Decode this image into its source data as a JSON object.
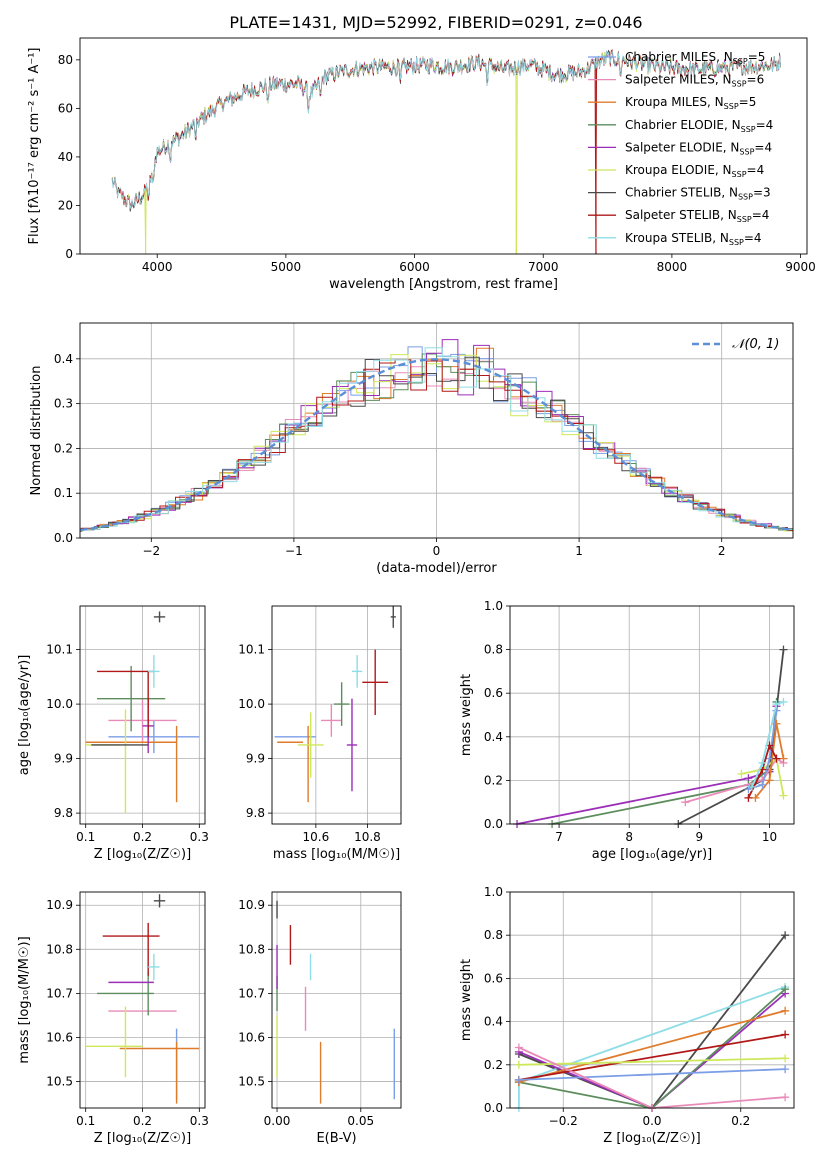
{
  "figure_title": "PLATE=1431, MJD=52992, FIBERID=0291, z=0.046",
  "models": [
    {
      "name": "Chabrier MILES",
      "nssp": "5",
      "color": "#7b9ee6"
    },
    {
      "name": "Salpeter MILES",
      "nssp": "6",
      "color": "#e98bb8"
    },
    {
      "name": "Kroupa MILES",
      "nssp": "5",
      "color": "#e07b2a"
    },
    {
      "name": "Chabrier ELODIE",
      "nssp": "4",
      "color": "#5d8d5d"
    },
    {
      "name": "Salpeter ELODIE",
      "nssp": "4",
      "color": "#9b2fb8"
    },
    {
      "name": "Kroupa ELODIE",
      "nssp": "4",
      "color": "#cde85a"
    },
    {
      "name": "Chabrier STELIB",
      "nssp": "3",
      "color": "#4a4a4a"
    },
    {
      "name": "Salpeter STELIB",
      "nssp": "4",
      "color": "#b01818"
    },
    {
      "name": "Kroupa STELIB",
      "nssp": "4",
      "color": "#8fdde6"
    }
  ],
  "chart_data": [
    {
      "id": "spectrum",
      "type": "line",
      "xlabel": "wavelength [Angstrom, rest frame]",
      "ylabel": "Flux [fλ10⁻¹⁷ erg cm⁻² s⁻¹ A⁻¹]",
      "xlim": [
        3400,
        9050
      ],
      "ylim": [
        0,
        89
      ],
      "xticks": [
        4000,
        5000,
        6000,
        7000,
        8000,
        9000
      ],
      "yticks": [
        0,
        20,
        40,
        60,
        80
      ],
      "legend_position": "top-right",
      "continuum_x": [
        3650,
        3700,
        3800,
        3900,
        3950,
        4000,
        4100,
        4200,
        4300,
        4500,
        4700,
        4900,
        5100,
        5200,
        5300,
        5500,
        5700,
        5900,
        6100,
        6300,
        6500,
        6700,
        6900,
        7100,
        7300,
        7500,
        7700,
        7900,
        8200,
        8500,
        8800,
        8850
      ],
      "continuum_y": [
        30,
        25,
        20,
        25,
        31,
        42,
        46,
        49,
        54,
        62,
        67,
        70,
        70,
        66,
        73,
        76,
        77,
        77,
        78,
        77,
        79,
        76,
        78,
        74,
        75,
        81,
        79,
        77,
        76,
        77,
        78,
        80
      ],
      "dropouts": [
        {
          "wavelength": 3910,
          "model": "Kroupa ELODIE"
        },
        {
          "wavelength": 6790,
          "model": "Kroupa ELODIE"
        },
        {
          "wavelength": 7410,
          "model": "Salpeter STELIB"
        }
      ]
    },
    {
      "id": "residuals",
      "type": "histogram",
      "xlabel": "(data-model)/error",
      "ylabel": "Normed distribution",
      "xlim": [
        -2.5,
        2.5
      ],
      "ylim": [
        0,
        0.48
      ],
      "xticks": [
        -2,
        -1,
        0,
        1,
        2
      ],
      "yticks": [
        0.0,
        0.1,
        0.2,
        0.3,
        0.4
      ],
      "grid": true,
      "legend_position": "top-right",
      "reference_curve": "𝒩(0, 1)"
    },
    {
      "id": "age_vs_Z",
      "type": "errorbar",
      "xlabel": "Z [log₁₀(Z/Z☉)]",
      "ylabel": "age  [log₁₀(age/yr)]",
      "xlim": [
        0.09,
        0.31
      ],
      "ylim": [
        9.78,
        10.18
      ],
      "xticks": [
        0.1,
        0.2,
        0.3
      ],
      "yticks": [
        9.8,
        9.9,
        10.0,
        10.1
      ],
      "grid": true,
      "points": [
        {
          "model": "Chabrier MILES",
          "x": 0.22,
          "xerr": 0.08,
          "y": 9.94,
          "yerr": 0.03
        },
        {
          "model": "Salpeter MILES",
          "x": 0.2,
          "xerr": 0.06,
          "y": 9.97,
          "yerr": 0.04
        },
        {
          "model": "Kroupa MILES",
          "x": 0.18,
          "xerr": 0.08,
          "y": 9.93,
          "yerr": 0.0
        },
        {
          "model": "Kroupa MILES",
          "x": 0.26,
          "xerr": 0.0,
          "y": 9.89,
          "yerr": 0.07
        },
        {
          "model": "Chabrier ELODIE",
          "x": 0.18,
          "xerr": 0.06,
          "y": 10.01,
          "yerr": 0.06
        },
        {
          "model": "Salpeter ELODIE",
          "x": 0.21,
          "xerr": 0.01,
          "y": 9.96,
          "yerr": 0.05
        },
        {
          "model": "Kroupa ELODIE",
          "x": 0.13,
          "xerr": 0.03,
          "y": 9.925,
          "yerr": 0.0
        },
        {
          "model": "Kroupa ELODIE",
          "x": 0.17,
          "xerr": 0.0,
          "y": 9.895,
          "yerr": 0.095
        },
        {
          "model": "Chabrier STELIB",
          "x": 0.23,
          "xerr": 0.01,
          "y": 10.16,
          "yerr": 0.01
        },
        {
          "model": "Chabrier STELIB",
          "x": 0.16,
          "xerr": 0.05,
          "y": 9.925,
          "yerr": 0.0
        },
        {
          "model": "Salpeter STELIB",
          "x": 0.17,
          "xerr": 0.05,
          "y": 10.06,
          "yerr": 0.0
        },
        {
          "model": "Salpeter STELIB",
          "x": 0.21,
          "xerr": 0.0,
          "y": 10.0,
          "yerr": 0.06
        },
        {
          "model": "Kroupa STELIB",
          "x": 0.22,
          "xerr": 0.01,
          "y": 10.06,
          "yerr": 0.03
        }
      ]
    },
    {
      "id": "age_vs_mass",
      "type": "errorbar",
      "xlabel": "mass [log₁₀(M/M☉)]",
      "ylabel": "",
      "xlim": [
        10.43,
        10.93
      ],
      "ylim": [
        9.78,
        10.18
      ],
      "xticks": [
        10.6,
        10.8
      ],
      "yticks": [
        9.8,
        9.9,
        10.0,
        10.1
      ],
      "grid": true,
      "points": [
        {
          "model": "Chabrier MILES",
          "x": 10.52,
          "xerr": 0.08,
          "y": 9.94,
          "yerr": 0.0
        },
        {
          "model": "Kroupa MILES",
          "x": 10.5,
          "xerr": 0.05,
          "y": 9.93,
          "yerr": 0.0
        },
        {
          "model": "Kroupa MILES",
          "x": 10.57,
          "xerr": 0.0,
          "y": 9.89,
          "yerr": 0.07
        },
        {
          "model": "Salpeter MILES",
          "x": 10.66,
          "xerr": 0.04,
          "y": 9.97,
          "yerr": 0.03
        },
        {
          "model": "Chabrier ELODIE",
          "x": 10.7,
          "xerr": 0.03,
          "y": 10.0,
          "yerr": 0.04
        },
        {
          "model": "Salpeter ELODIE",
          "x": 10.74,
          "xerr": 0.02,
          "y": 9.925,
          "yerr": 0.085
        },
        {
          "model": "Kroupa ELODIE",
          "x": 10.58,
          "xerr": 0.05,
          "y": 9.925,
          "yerr": 0.06
        },
        {
          "model": "Chabrier STELIB",
          "x": 10.9,
          "xerr": 0.01,
          "y": 10.16,
          "yerr": 0.02
        },
        {
          "model": "Salpeter STELIB",
          "x": 10.83,
          "xerr": 0.05,
          "y": 10.04,
          "yerr": 0.06
        },
        {
          "model": "Kroupa STELIB",
          "x": 10.76,
          "xerr": 0.02,
          "y": 10.06,
          "yerr": 0.03
        }
      ]
    },
    {
      "id": "massweight_vs_age",
      "type": "line",
      "xlabel": "age  [log₁₀(age/yr)]",
      "ylabel": "mass weight",
      "xlim": [
        6.3,
        10.35
      ],
      "ylim": [
        0,
        1
      ],
      "xticks": [
        7,
        8,
        9,
        10
      ],
      "yticks": [
        0.0,
        0.2,
        0.4,
        0.6,
        0.8,
        1.0
      ],
      "grid": true,
      "series": [
        {
          "model": "Salpeter ELODIE",
          "x": [
            6.4,
            9.7,
            10.0,
            10.1
          ],
          "y": [
            0.0,
            0.21,
            0.24,
            0.54
          ]
        },
        {
          "model": "Chabrier ELODIE",
          "x": [
            6.9,
            9.7,
            10.0,
            10.1
          ],
          "y": [
            0.0,
            0.18,
            0.25,
            0.56
          ]
        },
        {
          "model": "Chabrier STELIB",
          "x": [
            8.7,
            9.9,
            10.0,
            10.2
          ],
          "y": [
            0.0,
            0.2,
            0.25,
            0.8
          ]
        },
        {
          "model": "Salpeter MILES",
          "x": [
            8.8,
            9.9,
            10.1,
            10.2
          ],
          "y": [
            0.1,
            0.2,
            0.3,
            0.28
          ]
        },
        {
          "model": "Kroupa ELODIE",
          "x": [
            9.6,
            9.9,
            10.1,
            10.2
          ],
          "y": [
            0.23,
            0.25,
            0.3,
            0.13
          ]
        },
        {
          "model": "Kroupa MILES",
          "x": [
            9.8,
            10.0,
            10.1,
            10.2
          ],
          "y": [
            0.12,
            0.2,
            0.46,
            0.3
          ]
        },
        {
          "model": "Chabrier MILES",
          "x": [
            9.7,
            9.9,
            10.0,
            10.1
          ],
          "y": [
            0.16,
            0.18,
            0.3,
            0.52
          ]
        },
        {
          "model": "Salpeter STELIB",
          "x": [
            9.7,
            9.9,
            10.0,
            10.1
          ],
          "y": [
            0.12,
            0.25,
            0.36,
            0.3
          ]
        },
        {
          "model": "Kroupa STELIB",
          "x": [
            9.75,
            9.9,
            10.1,
            10.2
          ],
          "y": [
            0.17,
            0.28,
            0.55,
            0.56
          ]
        }
      ]
    },
    {
      "id": "mass_vs_Z",
      "type": "errorbar",
      "xlabel": "Z [log₁₀(Z/Z☉)]",
      "ylabel": "mass [log₁₀(M/M☉)]",
      "xlim": [
        0.09,
        0.31
      ],
      "ylim": [
        10.44,
        10.93
      ],
      "xticks": [
        0.1,
        0.2,
        0.3
      ],
      "yticks": [
        10.5,
        10.6,
        10.7,
        10.8,
        10.9
      ],
      "grid": true,
      "points": [
        {
          "model": "Chabrier MILES",
          "x": 0.26,
          "xerr": 0.0,
          "y": 10.54,
          "yerr": 0.08
        },
        {
          "model": "Kroupa MILES",
          "x": 0.26,
          "xerr": 0.0,
          "y": 10.52,
          "yerr": 0.07
        },
        {
          "model": "Kroupa MILES",
          "x": 0.23,
          "xerr": 0.07,
          "y": 10.575,
          "yerr": 0.0
        },
        {
          "model": "Salpeter MILES",
          "x": 0.2,
          "xerr": 0.06,
          "y": 10.66,
          "yerr": 0.0
        },
        {
          "model": "Chabrier ELODIE",
          "x": 0.17,
          "xerr": 0.05,
          "y": 10.7,
          "yerr": 0.0
        },
        {
          "model": "Chabrier ELODIE",
          "x": 0.21,
          "xerr": 0.0,
          "y": 10.7,
          "yerr": 0.05
        },
        {
          "model": "Salpeter ELODIE",
          "x": 0.18,
          "xerr": 0.04,
          "y": 10.725,
          "yerr": 0.0
        },
        {
          "model": "Kroupa ELODIE",
          "x": 0.15,
          "xerr": 0.05,
          "y": 10.58,
          "yerr": 0.0
        },
        {
          "model": "Kroupa ELODIE",
          "x": 0.17,
          "xerr": 0.0,
          "y": 10.59,
          "yerr": 0.08
        },
        {
          "model": "Chabrier STELIB",
          "x": 0.23,
          "xerr": 0.01,
          "y": 10.91,
          "yerr": 0.015
        },
        {
          "model": "Salpeter STELIB",
          "x": 0.18,
          "xerr": 0.05,
          "y": 10.83,
          "yerr": 0.0
        },
        {
          "model": "Salpeter STELIB",
          "x": 0.21,
          "xerr": 0.0,
          "y": 10.8,
          "yerr": 0.06
        },
        {
          "model": "Kroupa STELIB",
          "x": 0.22,
          "xerr": 0.01,
          "y": 10.76,
          "yerr": 0.03
        }
      ]
    },
    {
      "id": "mass_vs_ebv",
      "type": "errorbar",
      "xlabel": "E(B-V)",
      "ylabel": "",
      "xlim": [
        -0.003,
        0.074
      ],
      "ylim": [
        10.44,
        10.93
      ],
      "xticks": [
        0.0,
        0.05
      ],
      "yticks": [
        10.5,
        10.6,
        10.7,
        10.8,
        10.9
      ],
      "grid": true,
      "points": [
        {
          "model": "Chabrier MILES",
          "x": 0.07,
          "xerr": 0.0,
          "y": 10.54,
          "yerr": 0.08
        },
        {
          "model": "Kroupa MILES",
          "x": 0.026,
          "xerr": 0.0,
          "y": 10.52,
          "yerr": 0.07
        },
        {
          "model": "Salpeter MILES",
          "x": 0.017,
          "xerr": 0.0,
          "y": 10.665,
          "yerr": 0.05
        },
        {
          "model": "Chabrier ELODIE",
          "x": 0.0,
          "xerr": 0.0,
          "y": 10.7,
          "yerr": 0.04
        },
        {
          "model": "Salpeter ELODIE",
          "x": 0.0,
          "xerr": 0.0,
          "y": 10.76,
          "yerr": 0.05
        },
        {
          "model": "Kroupa ELODIE",
          "x": 0.0,
          "xerr": 0.0,
          "y": 10.58,
          "yerr": 0.07
        },
        {
          "model": "Chabrier STELIB",
          "x": 0.0,
          "xerr": 0.0,
          "y": 10.89,
          "yerr": 0.02
        },
        {
          "model": "Salpeter STELIB",
          "x": 0.008,
          "xerr": 0.0,
          "y": 10.81,
          "yerr": 0.045
        },
        {
          "model": "Kroupa STELIB",
          "x": 0.02,
          "xerr": 0.0,
          "y": 10.76,
          "yerr": 0.03
        }
      ]
    },
    {
      "id": "massweight_vs_Z",
      "type": "line",
      "xlabel": "Z [log₁₀(Z/Z☉)]",
      "ylabel": "mass weight",
      "xlim": [
        -0.32,
        0.32
      ],
      "ylim": [
        0,
        1
      ],
      "xticks": [
        -0.2,
        0.0,
        0.2
      ],
      "yticks": [
        0.0,
        0.2,
        0.4,
        0.6,
        0.8,
        1.0
      ],
      "grid": true,
      "series": [
        {
          "model": "Chabrier STELIB",
          "x": [
            -0.3,
            0.0,
            0.3
          ],
          "y": [
            0.25,
            0.0,
            0.8
          ]
        },
        {
          "model": "Kroupa STELIB",
          "x": [
            -0.3,
            -0.3,
            0.3
          ],
          "y": [
            0.0,
            0.12,
            0.56
          ]
        },
        {
          "model": "Salpeter ELODIE",
          "x": [
            -0.3,
            0.0,
            0.3
          ],
          "y": [
            0.26,
            0.0,
            0.53
          ]
        },
        {
          "model": "Chabrier ELODIE",
          "x": [
            -0.3,
            0.0,
            0.3
          ],
          "y": [
            0.12,
            0.0,
            0.55
          ]
        },
        {
          "model": "Kroupa MILES",
          "x": [
            -0.3,
            0.3
          ],
          "y": [
            0.12,
            0.45
          ]
        },
        {
          "model": "Salpeter STELIB",
          "x": [
            -0.3,
            0.3
          ],
          "y": [
            0.13,
            0.34
          ]
        },
        {
          "model": "Kroupa ELODIE",
          "x": [
            -0.3,
            0.3
          ],
          "y": [
            0.2,
            0.23
          ]
        },
        {
          "model": "Chabrier MILES",
          "x": [
            -0.3,
            0.3
          ],
          "y": [
            0.13,
            0.18
          ]
        },
        {
          "model": "Salpeter MILES",
          "x": [
            -0.3,
            0.0,
            0.3
          ],
          "y": [
            0.28,
            0.0,
            0.05
          ]
        }
      ]
    }
  ]
}
